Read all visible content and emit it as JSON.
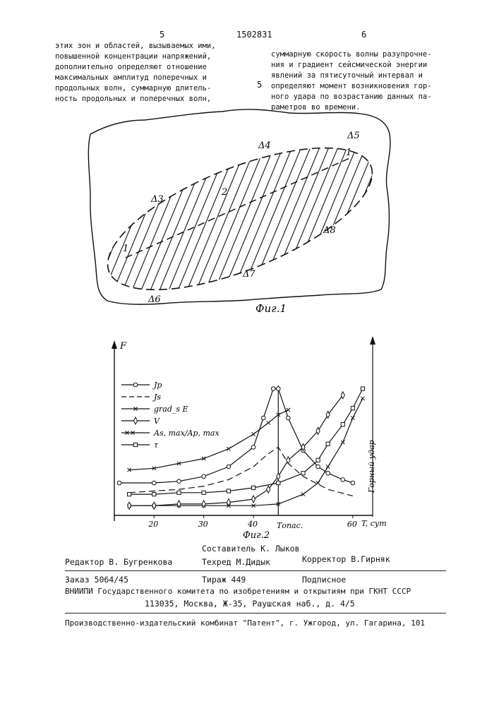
{
  "header": {
    "left_page_number": "5",
    "patent_number": "1502831",
    "right_page_number": "6",
    "margin_line_number": "5"
  },
  "left_column": [
    "этих зон и областей, вызываемых ими,",
    "повышенной концентрации напряжений,",
    "дополнительно определяют отношение",
    "максимальных амплитуд поперечных и",
    "продольных волн, суммарную длитель-",
    "ность продольных и поперечных волн,"
  ],
  "right_column": [
    "суммарную скорость волны разупрочне-",
    "ния и градиент сейсмической энергии",
    "явлений за пятисуточный интервал и",
    "определяют момент возникновения гор-",
    "ного удара по возрастанию данных па-",
    "раметров во времени."
  ],
  "fig1": {
    "caption": "Фиг.1",
    "labels": {
      "d3": "Δ3",
      "d4": "Δ4",
      "d5": "Δ5",
      "d6": "Δ6",
      "d7": "Δ7",
      "d8": "Δ8",
      "one_left": "1",
      "one_right": "1",
      "two": "2"
    }
  },
  "fig2": {
    "caption": "Фиг.2",
    "y_axis_label": "F",
    "x_axis_label": "T, сут",
    "t_danger_label": "Tопас.",
    "rockburst_label": "Горный удар",
    "legend": [
      {
        "id": "jp",
        "symbol": "circle",
        "label": "Jp"
      },
      {
        "id": "js",
        "symbol": "dash",
        "label": "Js"
      },
      {
        "id": "grad",
        "symbol": "x",
        "label": "grad_s E"
      },
      {
        "id": "v",
        "symbol": "diamond",
        "label": "V"
      },
      {
        "id": "ratio",
        "symbol": "xx",
        "label": "As, max/Ap, max"
      },
      {
        "id": "tau",
        "symbol": "square",
        "label": "τ"
      }
    ]
  },
  "chart_data": {
    "type": "line",
    "title": "",
    "xlabel": "T, сут",
    "ylabel": "F",
    "x_ticks": [
      20,
      30,
      40,
      60
    ],
    "x_tick_labels": [
      "20",
      "30",
      "40",
      "60"
    ],
    "xlim": [
      12,
      64
    ],
    "ylim": [
      0,
      100
    ],
    "t_danger": 45,
    "series": [
      {
        "name": "Jp",
        "marker": "circle",
        "x": [
          13,
          20,
          25,
          30,
          35,
          40,
          42,
          44,
          45,
          47,
          50,
          53,
          55,
          58,
          60
        ],
        "y": [
          20,
          20,
          21,
          24,
          30,
          42,
          60,
          78,
          78,
          60,
          40,
          30,
          26,
          22,
          20
        ]
      },
      {
        "name": "Js",
        "marker": "dash",
        "x": [
          15,
          20,
          25,
          30,
          35,
          40,
          43,
          45,
          47,
          50,
          55,
          60
        ],
        "y": [
          14,
          15,
          16,
          18,
          22,
          30,
          38,
          42,
          32,
          24,
          16,
          12
        ]
      },
      {
        "name": "grad_s E",
        "marker": "x",
        "x": [
          15,
          20,
          25,
          30,
          35,
          40,
          45,
          50,
          53,
          55,
          58,
          60,
          62
        ],
        "y": [
          6,
          6,
          6,
          6,
          6,
          6,
          7,
          13,
          20,
          30,
          45,
          60,
          72
        ]
      },
      {
        "name": "V",
        "marker": "diamond",
        "x": [
          15,
          20,
          25,
          30,
          35,
          40,
          43,
          45,
          47,
          50,
          53,
          55,
          58
        ],
        "y": [
          6,
          6,
          7,
          7,
          8,
          10,
          16,
          24,
          34,
          42,
          52,
          62,
          74
        ]
      },
      {
        "name": "As, max/Ap, max",
        "marker": "xx",
        "x": [
          15,
          20,
          25,
          30,
          35,
          40,
          43,
          45,
          47
        ],
        "y": [
          28,
          29,
          32,
          35,
          41,
          50,
          57,
          62,
          65
        ]
      },
      {
        "name": "τ",
        "marker": "square",
        "x": [
          15,
          20,
          25,
          30,
          35,
          40,
          45,
          50,
          53,
          55,
          58,
          60,
          62
        ],
        "y": [
          13,
          13,
          14,
          14,
          15,
          17,
          20,
          26,
          34,
          44,
          56,
          66,
          78
        ]
      }
    ]
  },
  "footer": {
    "compiler": "Составитель К. Лыков",
    "editor": "Редактор В. Бугренкова",
    "techred": "Техред М.Дидык",
    "corrector": "Корректор В.Гирняк",
    "order": "Заказ 5064/45",
    "circulation": "Тираж 449",
    "subscription": "Подписное",
    "org_line": "ВНИИПИ Государственного комитета по изобретениям и открытиям при ГКНТ СССР",
    "address": "113035, Москва, Ж-35, Раушская наб., д. 4/5",
    "publisher": "Производственно-издательский комбинат \"Патент\", г. Ужгород, ул. Гагарина, 101"
  }
}
